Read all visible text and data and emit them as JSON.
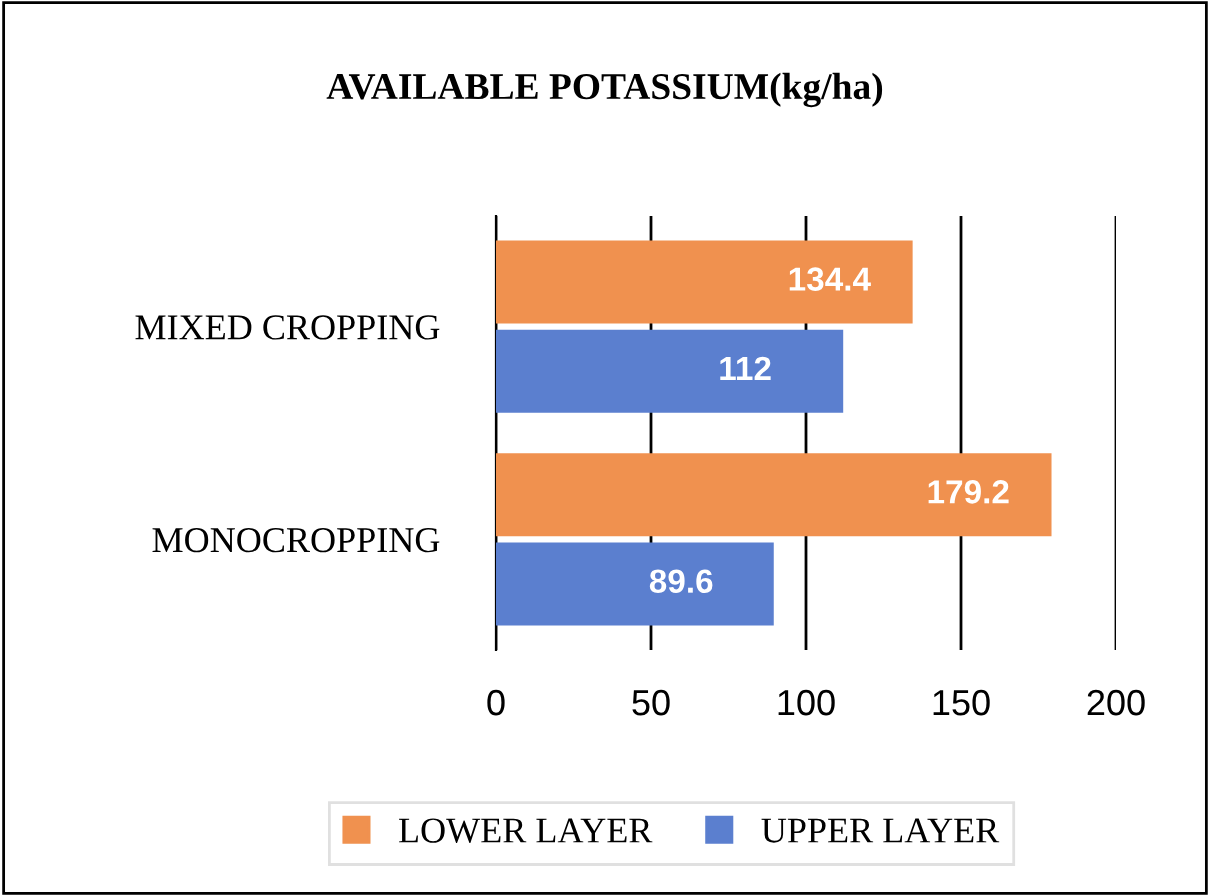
{
  "chart_data": {
    "type": "bar",
    "orientation": "horizontal",
    "title": "AVAILABLE POTASSIUM(kg/ha)",
    "categories": [
      "MIXED CROPPING",
      "MONOCROPPING"
    ],
    "series": [
      {
        "name": "LOWER LAYER",
        "color": "#f0914f",
        "values": [
          134.4,
          179.2
        ]
      },
      {
        "name": "UPPER LAYER",
        "color": "#5b7fcf",
        "values": [
          112,
          89.6
        ]
      }
    ],
    "xlim": [
      0,
      200
    ],
    "xticks": [
      0,
      50,
      100,
      150,
      200
    ],
    "grid": "x",
    "legend": "bottom",
    "data_labels": true
  }
}
